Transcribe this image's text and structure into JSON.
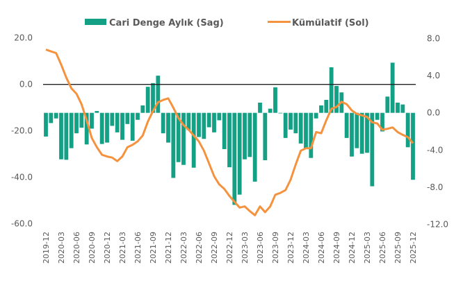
{
  "chart_data": {
    "type": "bar+line",
    "title": "",
    "legend": {
      "position": "top",
      "entries": [
        "Cari Denge Aylık (Sag)",
        "Kümülatif (Sol)"
      ]
    },
    "colors": {
      "bars": "#13a085",
      "line": "#f5923e",
      "zero_line": "#222222",
      "text": "#595959"
    },
    "left_axis": {
      "ticks": [
        "20.0",
        "0.0",
        "-20.0",
        "-40.0",
        "-60.0"
      ],
      "ylim": [
        -60,
        20
      ],
      "series": "Kümülatif (Sol)"
    },
    "right_axis": {
      "ticks": [
        "8.0",
        "4.0",
        "0.0",
        "-4.0",
        "-8.0",
        "-12.0"
      ],
      "ylim": [
        -12,
        8
      ],
      "series": "Cari Denge Aylık (Sag)"
    },
    "x_tick_labels": [
      "2019-12",
      "2020-03",
      "2020-06",
      "2020-09",
      "2020-12",
      "2021-03",
      "2021-06",
      "2021-09",
      "2021-12",
      "2022-03",
      "2022-06",
      "2022-09",
      "2022-12",
      "2023-03",
      "2023-06",
      "2023-09",
      "2023-12",
      "2024-03",
      "2024-06",
      "2024-09",
      "2024-12",
      "2025-03",
      "2025-06",
      "2025-09",
      "2025-12"
    ],
    "start_month": "2019-12",
    "series": [
      {
        "name": "Cari Denge Aylık (Sag)",
        "type": "bar",
        "axis": "right",
        "values": [
          -2.55,
          -1.1,
          -0.6,
          -5.0,
          -5.05,
          -3.8,
          -2.2,
          -1.6,
          -3.4,
          -1.7,
          0.2,
          -3.35,
          -3.2,
          -1.4,
          -2.1,
          -2.9,
          -1.2,
          -3.0,
          -0.75,
          0.8,
          2.8,
          3.2,
          4.0,
          -2.2,
          -3.2,
          -7.0,
          -5.3,
          -5.6,
          -1.85,
          -5.9,
          -2.6,
          -2.8,
          -1.55,
          -2.1,
          -0.8,
          -3.9,
          -5.85,
          -9.9,
          -8.8,
          -5.0,
          -4.75,
          -7.4,
          1.1,
          -5.1,
          0.45,
          2.75,
          -0.05,
          -2.7,
          -1.8,
          -2.2,
          -3.3,
          -3.8,
          -4.85,
          -0.6,
          0.8,
          1.4,
          4.9,
          2.9,
          2.2,
          -2.7,
          -4.7,
          -3.8,
          -4.4,
          -4.3,
          -7.9,
          -0.75,
          -2.0,
          1.75,
          5.4,
          1.1,
          0.9,
          -3.7,
          -7.2
        ]
      },
      {
        "name": "Kümülatif (Sol)",
        "type": "line",
        "axis": "left",
        "values": [
          15,
          14.2,
          13.5,
          8.5,
          3,
          -1.7,
          -4,
          -8.5,
          -15.5,
          -23,
          -27,
          -30.3,
          -31,
          -31.5,
          -33,
          -31,
          -27,
          -26,
          -24.5,
          -22,
          -16,
          -11.5,
          -7.7,
          -6.7,
          -6,
          -10,
          -14.5,
          -17.5,
          -19.5,
          -22,
          -24.5,
          -28.5,
          -34,
          -39.5,
          -43,
          -45,
          -48,
          -50.5,
          -53,
          -52.5,
          -54.5,
          -56.3,
          -52.5,
          -55,
          -52.5,
          -47.5,
          -46.7,
          -45.5,
          -41,
          -34.5,
          -28.5,
          -27.5,
          -27.5,
          -20.5,
          -21,
          -15.5,
          -10.5,
          -9.7,
          -7.5,
          -8.5,
          -11.2,
          -12.7,
          -13.3,
          -14,
          -16.3,
          -16.8,
          -19.5,
          -19.1,
          -18.5,
          -20.5,
          -21.7,
          -22.7,
          -25.3
        ]
      }
    ]
  }
}
